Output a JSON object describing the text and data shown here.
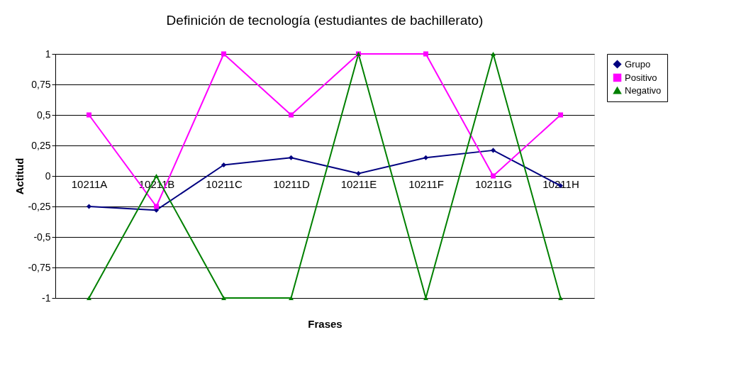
{
  "chart_data": {
    "type": "line",
    "title": "Definición de tecnología (estudiantes de bachillerato)",
    "xlabel": "Frases",
    "ylabel": "Actitud",
    "categories": [
      "10211A",
      "10211B",
      "10211C",
      "10211D",
      "10211E",
      "10211F",
      "10211G",
      "10211H"
    ],
    "series": [
      {
        "name": "Grupo",
        "color": "#000080",
        "marker": "diamond",
        "values": [
          -0.25,
          -0.28,
          0.09,
          0.15,
          0.02,
          0.15,
          0.21,
          -0.08
        ]
      },
      {
        "name": "Positivo",
        "color": "#ff00ff",
        "marker": "square",
        "values": [
          0.5,
          -0.25,
          1,
          0.5,
          1,
          1,
          0,
          0.5
        ]
      },
      {
        "name": "Negativo",
        "color": "#008000",
        "marker": "triangle",
        "values": [
          -1,
          0,
          -1,
          -1,
          1,
          -1,
          1,
          -1
        ]
      }
    ],
    "ylim": [
      -1,
      1
    ],
    "yticks": [
      {
        "value": -1,
        "label": "-1"
      },
      {
        "value": -0.75,
        "label": "-0,75"
      },
      {
        "value": -0.5,
        "label": "-0,5"
      },
      {
        "value": -0.25,
        "label": "-0,25"
      },
      {
        "value": 0,
        "label": "0"
      },
      {
        "value": 0.25,
        "label": "0,25"
      },
      {
        "value": 0.5,
        "label": "0,5"
      },
      {
        "value": 0.75,
        "label": "0,75"
      },
      {
        "value": 1,
        "label": "1"
      }
    ],
    "grid": "y",
    "legend": "right",
    "line_style": "solid"
  }
}
